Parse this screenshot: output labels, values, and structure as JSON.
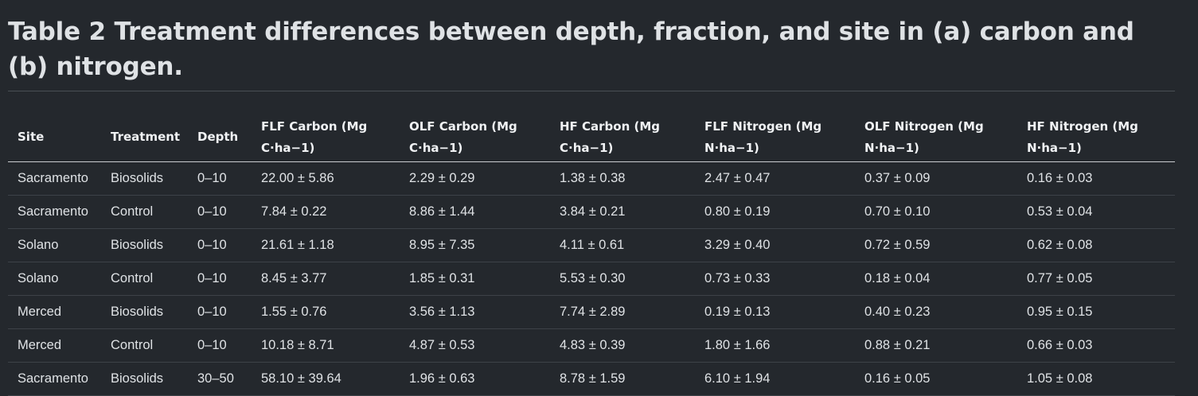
{
  "title": "Table 2 Treatment differences between depth, fraction, and site in (a) carbon and (b) nitrogen.",
  "table": {
    "headers": [
      "Site",
      "Treatment",
      "Depth",
      "FLF Carbon (Mg C·ha−1)",
      "OLF Carbon (Mg C·ha−1)",
      "HF Carbon (Mg C·ha−1)",
      "FLF Nitrogen (Mg N·ha−1)",
      "OLF Nitrogen (Mg N·ha−1)",
      "HF Nitrogen (Mg N·ha−1)"
    ],
    "rows": [
      [
        "Sacramento",
        "Biosolids",
        "0–10",
        "22.00 ± 5.86",
        "2.29 ± 0.29",
        "1.38 ± 0.38",
        "2.47 ± 0.47",
        "0.37 ± 0.09",
        "0.16 ± 0.03"
      ],
      [
        "Sacramento",
        "Control",
        "0–10",
        "7.84 ± 0.22",
        "8.86 ± 1.44",
        "3.84 ± 0.21",
        "0.80 ± 0.19",
        "0.70 ± 0.10",
        "0.53 ± 0.04"
      ],
      [
        "Solano",
        "Biosolids",
        "0–10",
        "21.61 ± 1.18",
        "8.95 ± 7.35",
        "4.11 ± 0.61",
        "3.29 ± 0.40",
        "0.72 ± 0.59",
        "0.62 ± 0.08"
      ],
      [
        "Solano",
        "Control",
        "0–10",
        "8.45 ± 3.77",
        "1.85 ± 0.31",
        "5.53 ± 0.30",
        "0.73 ± 0.33",
        "0.18 ± 0.04",
        "0.77 ± 0.05"
      ],
      [
        "Merced",
        "Biosolids",
        "0–10",
        "1.55 ± 0.76",
        "3.56 ± 1.13",
        "7.74 ± 2.89",
        "0.19 ± 0.13",
        "0.40 ± 0.23",
        "0.95 ± 0.15"
      ],
      [
        "Merced",
        "Control",
        "0–10",
        "10.18 ± 8.71",
        "4.87 ± 0.53",
        "4.83 ± 0.39",
        "1.80 ± 1.66",
        "0.88 ± 0.21",
        "0.66 ± 0.03"
      ],
      [
        "Sacramento",
        "Biosolids",
        "30–50",
        "58.10 ± 39.64",
        "1.96 ± 0.63",
        "8.78 ± 1.59",
        "6.10 ± 1.94",
        "0.16 ± 0.05",
        "1.05 ± 0.08"
      ]
    ]
  }
}
